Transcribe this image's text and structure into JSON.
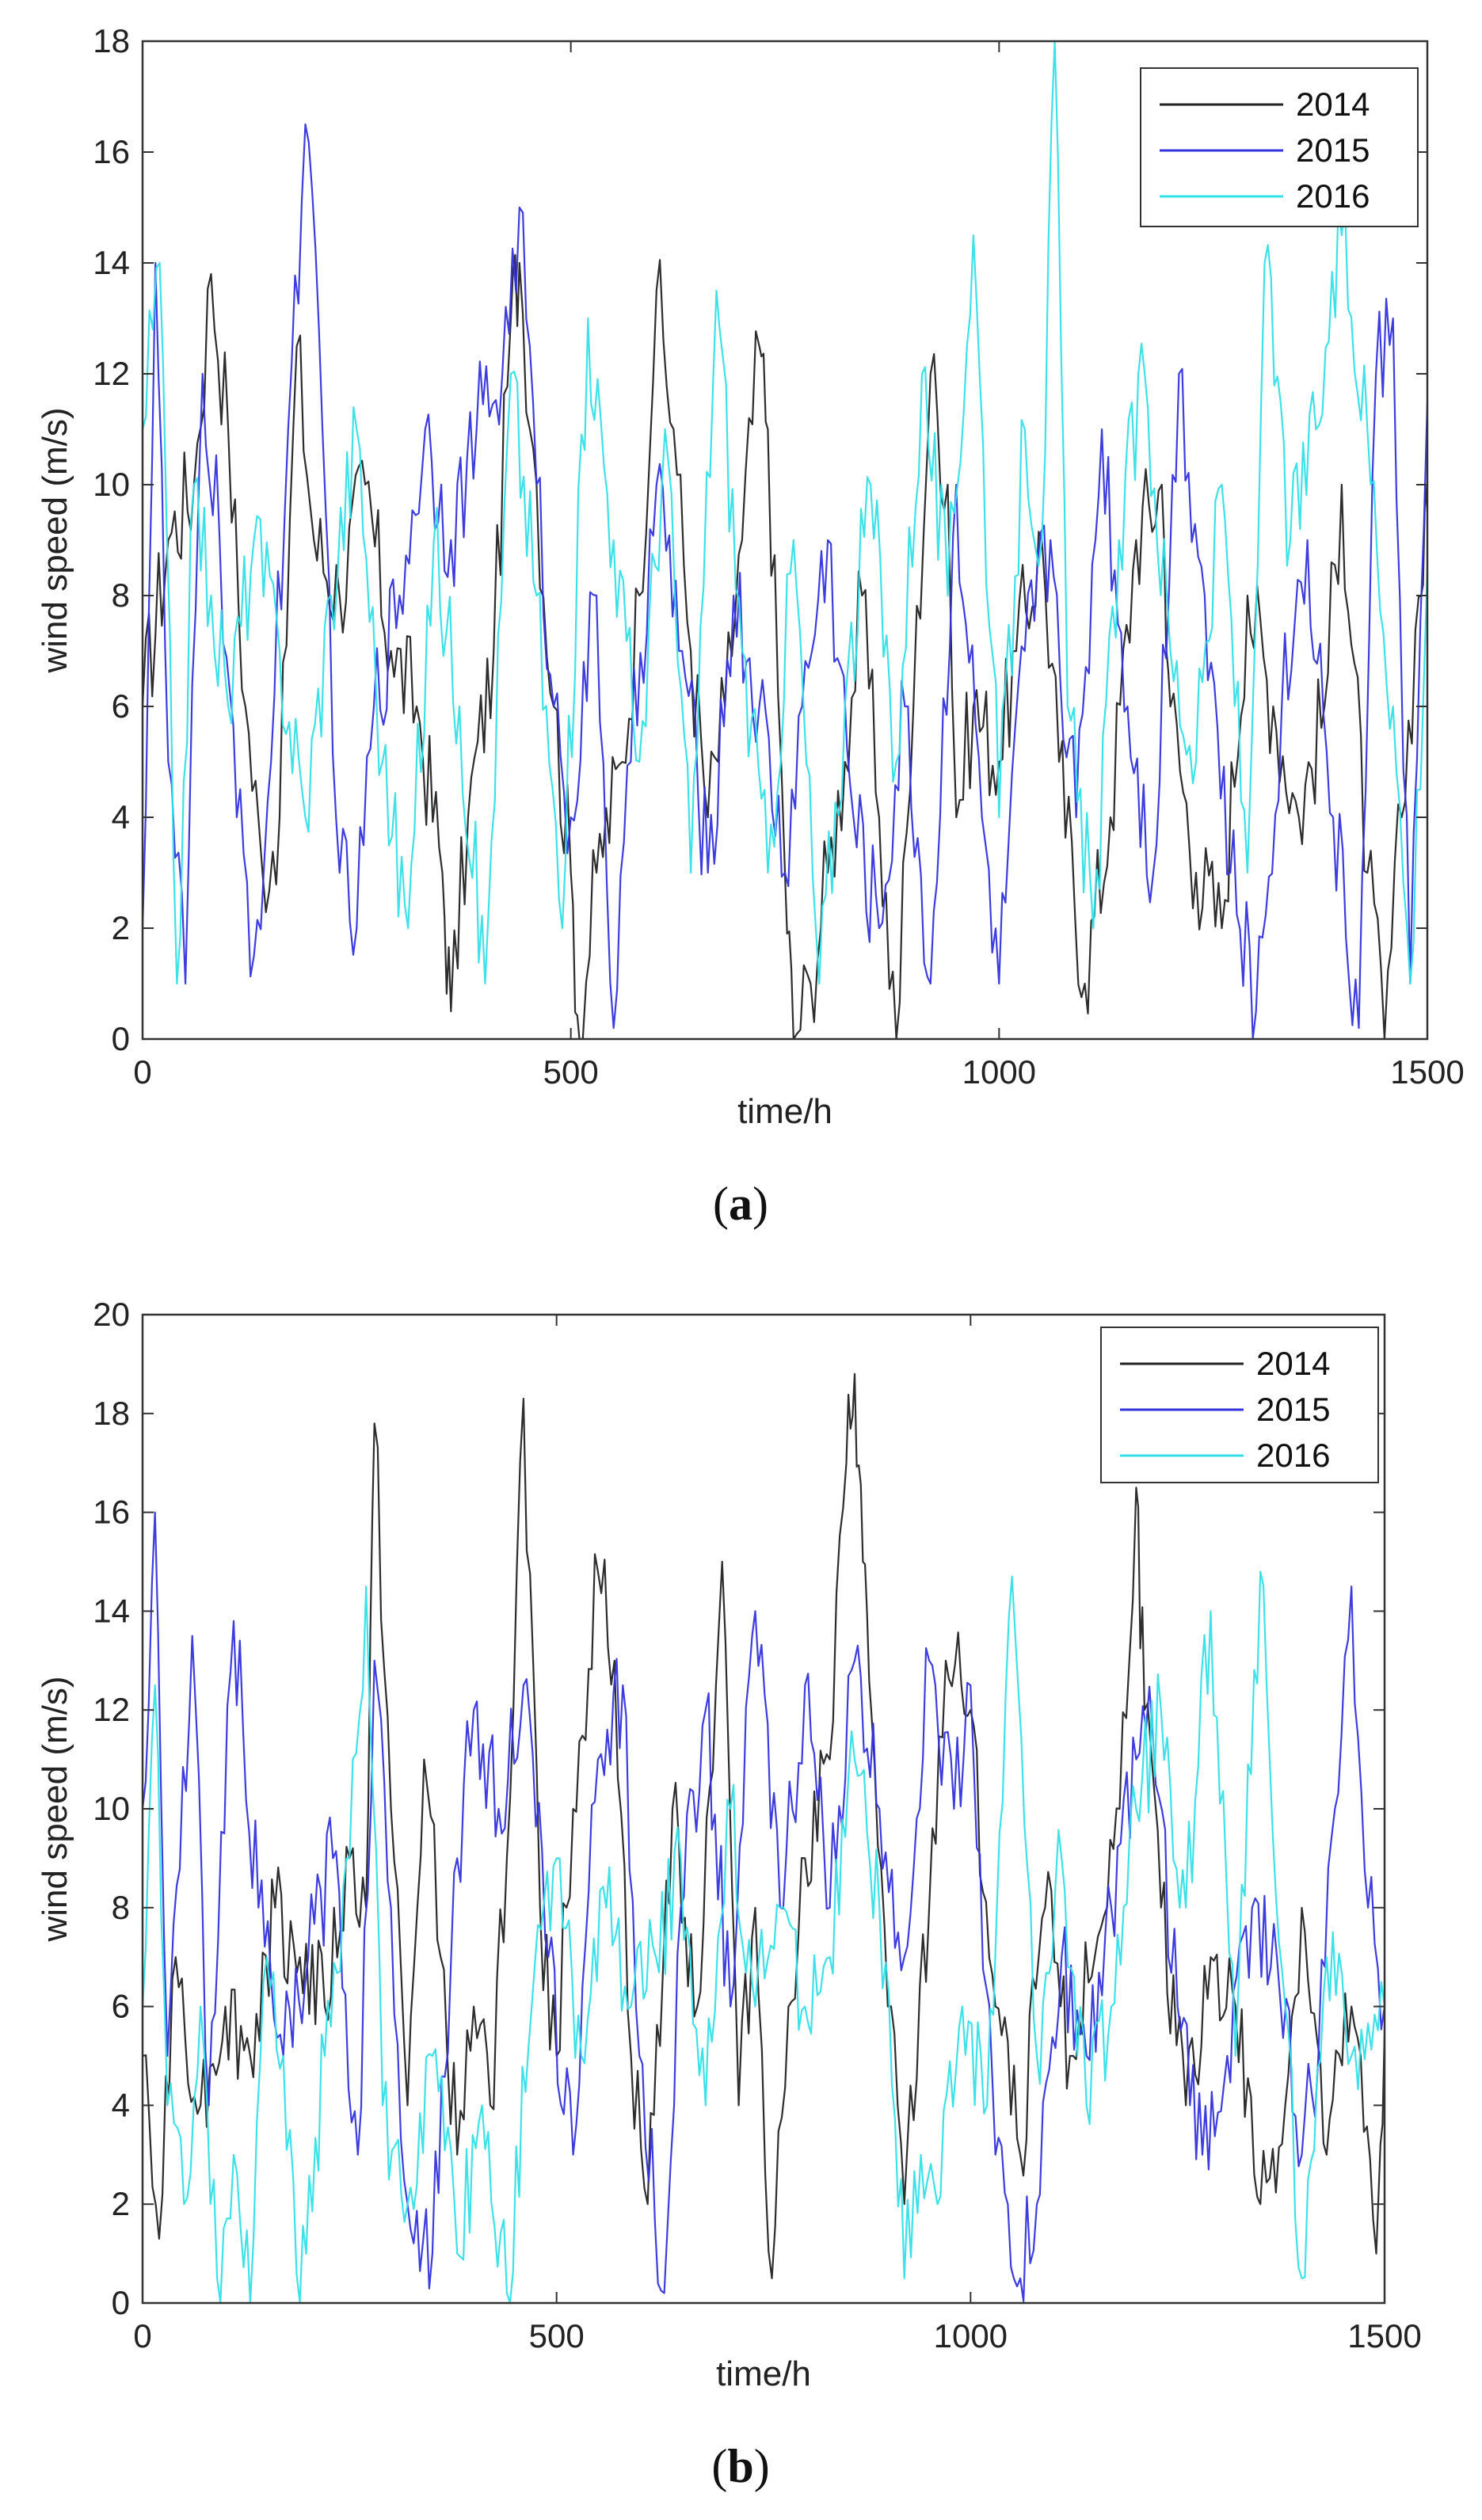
{
  "chart_data": [
    {
      "type": "line",
      "panel": "a",
      "caption": "(a)",
      "caption_letter": "a",
      "title": "",
      "xlabel": "time/h",
      "ylabel": "wind speed (m/s)",
      "xlim": [
        0,
        1500
      ],
      "ylim": [
        0,
        18
      ],
      "xticks": [
        0,
        500,
        1000,
        1500
      ],
      "yticks": [
        0,
        2,
        4,
        6,
        8,
        10,
        12,
        14,
        16,
        18
      ],
      "grid": false,
      "legend_position": "top-right",
      "series": [
        {
          "name": "2014",
          "color": "#222222",
          "x": [
            0,
            30,
            60,
            80,
            100,
            120,
            140,
            160,
            180,
            200,
            230,
            260,
            290,
            320,
            350,
            360,
            380,
            410,
            430,
            440,
            460,
            480,
            500,
            510,
            530,
            560,
            580,
            600,
            620,
            640,
            660,
            680,
            700,
            720,
            730,
            750,
            760,
            780,
            800,
            820,
            840,
            860,
            880,
            900,
            920,
            940,
            950,
            970,
            1000,
            1020,
            1050,
            1070,
            1100,
            1130,
            1160,
            1190,
            1200,
            1230,
            1260,
            1290,
            1320,
            1350,
            1380,
            1400,
            1430,
            1450,
            1470,
            1490,
            1500
          ],
          "values": [
            6,
            9,
            10,
            13.8,
            11,
            6,
            3,
            4,
            12.5,
            9,
            8,
            10,
            7,
            6,
            3,
            0.5,
            4,
            7,
            13,
            14,
            10,
            6,
            3,
            0,
            3,
            5,
            8,
            13.5,
            11,
            7,
            4,
            6,
            9,
            12.5,
            11,
            3,
            0,
            1,
            3,
            5,
            8,
            4,
            0,
            6,
            12,
            10,
            4,
            6,
            5,
            7,
            9,
            5,
            1,
            4,
            9,
            10,
            6,
            3,
            2,
            8,
            6,
            4,
            6,
            10,
            3,
            0,
            4,
            8,
            9.5
          ]
        },
        {
          "name": "2015",
          "color": "#3333dd",
          "x": [
            0,
            15,
            30,
            50,
            70,
            90,
            110,
            130,
            150,
            170,
            190,
            210,
            230,
            250,
            270,
            300,
            330,
            360,
            390,
            420,
            440,
            460,
            480,
            500,
            530,
            550,
            570,
            600,
            630,
            660,
            690,
            720,
            750,
            770,
            800,
            830,
            860,
            890,
            920,
            950,
            980,
            1000,
            1030,
            1060,
            1090,
            1120,
            1150,
            1180,
            1210,
            1240,
            1270,
            1300,
            1330,
            1360,
            1390,
            1420,
            1440,
            1460,
            1480,
            1500
          ],
          "values": [
            2,
            14,
            5,
            1,
            12,
            9,
            4,
            1.5,
            5,
            11,
            16.5,
            11,
            3,
            2,
            6,
            8,
            11,
            9,
            11,
            12,
            15,
            10,
            6,
            4,
            8,
            0.2,
            5,
            10,
            7,
            3,
            8,
            6,
            3,
            6,
            9,
            4,
            2,
            6,
            1,
            10,
            4,
            1,
            7,
            9,
            4,
            11,
            6,
            3,
            12,
            8,
            3,
            0.5,
            6,
            9,
            4,
            0.2,
            12,
            13,
            1,
            11.5
          ]
        },
        {
          "name": "2016",
          "color": "#33e0e8",
          "x": [
            0,
            20,
            40,
            60,
            80,
            100,
            130,
            160,
            190,
            220,
            250,
            280,
            310,
            340,
            370,
            400,
            430,
            460,
            490,
            520,
            550,
            580,
            610,
            640,
            670,
            700,
            730,
            760,
            790,
            820,
            850,
            880,
            910,
            940,
            970,
            1000,
            1030,
            1050,
            1065,
            1080,
            1110,
            1140,
            1170,
            1200,
            1230,
            1260,
            1290,
            1310,
            1340,
            1370,
            1400,
            1430,
            1460,
            1480,
            1500
          ],
          "values": [
            11,
            14,
            1,
            10,
            8,
            6,
            9,
            7,
            4,
            8,
            11,
            5,
            2,
            9,
            6,
            1,
            12,
            8,
            2,
            13,
            9,
            5,
            11,
            3,
            13.5,
            7,
            3,
            9,
            1,
            6,
            10,
            5,
            12,
            8,
            14.5,
            4,
            11,
            9,
            18,
            6,
            2,
            9,
            12,
            7,
            5,
            10,
            3,
            14,
            9,
            11,
            14.5,
            11,
            6,
            1,
            8.5
          ]
        }
      ]
    },
    {
      "type": "line",
      "panel": "b",
      "caption": "(b)",
      "caption_letter": "b",
      "title": "",
      "xlabel": "time/h",
      "ylabel": "wind speed (m/s)",
      "xlim": [
        0,
        1500
      ],
      "ylim": [
        0,
        20
      ],
      "xticks": [
        0,
        500,
        1000,
        1500
      ],
      "yticks": [
        0,
        2,
        4,
        6,
        8,
        10,
        12,
        14,
        16,
        18,
        20
      ],
      "grid": false,
      "legend_position": "top-right",
      "series": [
        {
          "name": "2014",
          "color": "#222222",
          "x": [
            0,
            20,
            40,
            70,
            100,
            130,
            160,
            190,
            220,
            250,
            270,
            280,
            300,
            320,
            340,
            360,
            380,
            400,
            420,
            440,
            460,
            480,
            500,
            520,
            550,
            570,
            590,
            610,
            640,
            670,
            700,
            720,
            740,
            760,
            780,
            800,
            830,
            850,
            860,
            870,
            880,
            900,
            920,
            950,
            970,
            1000,
            1030,
            1060,
            1090,
            1120,
            1150,
            1180,
            1200,
            1210,
            1230,
            1260,
            1290,
            1320,
            1350,
            1380,
            1400,
            1430,
            1460,
            1490,
            1500
          ],
          "values": [
            5,
            1.3,
            7,
            4,
            6,
            5,
            8,
            7,
            6,
            9,
            8,
            17.8,
            10,
            4,
            11,
            7,
            3,
            6,
            4,
            9,
            18.3,
            8,
            5,
            10,
            14.8,
            13,
            5,
            2,
            10,
            6,
            15,
            4,
            8,
            0.5,
            6,
            9,
            11,
            17,
            18.8,
            15,
            12,
            6,
            2,
            8,
            13,
            12,
            6,
            3,
            8,
            5,
            7,
            10,
            16.5,
            12,
            8,
            4,
            7,
            6,
            2,
            4,
            8,
            3,
            6,
            1,
            5.5
          ]
        },
        {
          "name": "2015",
          "color": "#3333dd",
          "x": [
            0,
            15,
            30,
            60,
            80,
            110,
            140,
            170,
            200,
            230,
            260,
            280,
            300,
            320,
            350,
            380,
            400,
            430,
            460,
            490,
            520,
            550,
            580,
            600,
            630,
            650,
            680,
            710,
            740,
            770,
            800,
            830,
            860,
            890,
            920,
            950,
            980,
            1000,
            1030,
            1060,
            1080,
            1110,
            1140,
            1170,
            1200,
            1220,
            1250,
            1280,
            1310,
            1340,
            1370,
            1400,
            1420,
            1440,
            1460,
            1480,
            1500
          ],
          "values": [
            10,
            16,
            5,
            13.5,
            4,
            13.8,
            8,
            5,
            7,
            9,
            3,
            13,
            8,
            2,
            1,
            9,
            12,
            10,
            12.5,
            7,
            3,
            11,
            12.5,
            5,
            0.2,
            8,
            12,
            6,
            14,
            8,
            12.5,
            8,
            13,
            10,
            7,
            13,
            10,
            12.5,
            3,
            0.5,
            2,
            7,
            5,
            8,
            11,
            11.5,
            6,
            3,
            5,
            8,
            7,
            3,
            5,
            10,
            14.5,
            8,
            6
          ]
        },
        {
          "name": "2016",
          "color": "#33e0e8",
          "x": [
            0,
            15,
            30,
            50,
            70,
            90,
            110,
            130,
            150,
            170,
            190,
            220,
            250,
            270,
            290,
            320,
            350,
            380,
            410,
            440,
            470,
            500,
            530,
            560,
            590,
            620,
            650,
            680,
            710,
            740,
            770,
            800,
            830,
            860,
            890,
            920,
            940,
            960,
            990,
            1020,
            1050,
            1080,
            1110,
            1140,
            1170,
            1200,
            1230,
            1260,
            1290,
            1320,
            1350,
            1380,
            1400,
            1430,
            1460,
            1500
          ],
          "values": [
            6,
            12.5,
            4,
            2,
            6,
            0.5,
            3,
            0,
            7,
            5,
            0,
            5,
            9,
            14.5,
            4,
            2,
            5,
            1,
            4,
            0.2,
            6,
            9,
            5,
            8,
            6,
            7,
            9,
            4,
            10,
            6,
            8,
            6,
            7,
            11,
            8,
            0.5,
            3,
            2,
            6,
            4,
            14.7,
            5,
            9,
            4,
            6,
            10,
            12,
            8,
            14,
            5,
            14.8,
            6,
            0.5,
            7,
            5,
            6
          ]
        }
      ]
    }
  ]
}
